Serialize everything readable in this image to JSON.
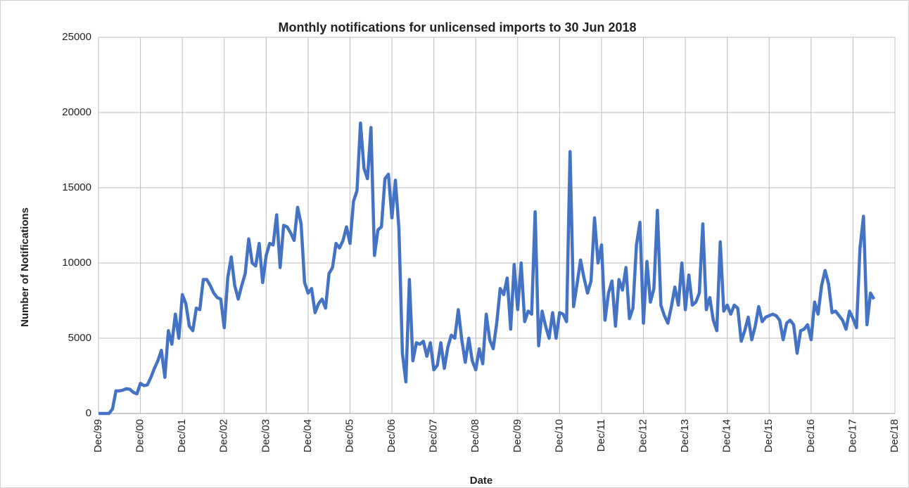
{
  "chart_data": {
    "type": "line",
    "title": "Monthly notifications for unlicensed imports to 30 Jun 2018",
    "xlabel": "Date",
    "ylabel": "Number of Notifications",
    "x": [
      "1999-12",
      "2000-01",
      "2000-02",
      "2000-03",
      "2000-04",
      "2000-05",
      "2000-06",
      "2000-07",
      "2000-08",
      "2000-09",
      "2000-10",
      "2000-11",
      "2000-12",
      "2001-01",
      "2001-02",
      "2001-03",
      "2001-04",
      "2001-05",
      "2001-06",
      "2001-07",
      "2001-08",
      "2001-09",
      "2001-10",
      "2001-11",
      "2001-12",
      "2002-01",
      "2002-02",
      "2002-03",
      "2002-04",
      "2002-05",
      "2002-06",
      "2002-07",
      "2002-08",
      "2002-09",
      "2002-10",
      "2002-11",
      "2002-12",
      "2003-01",
      "2003-02",
      "2003-03",
      "2003-04",
      "2003-05",
      "2003-06",
      "2003-07",
      "2003-08",
      "2003-09",
      "2003-10",
      "2003-11",
      "2003-12",
      "2004-01",
      "2004-02",
      "2004-03",
      "2004-04",
      "2004-05",
      "2004-06",
      "2004-07",
      "2004-08",
      "2004-09",
      "2004-10",
      "2004-11",
      "2004-12",
      "2005-01",
      "2005-02",
      "2005-03",
      "2005-04",
      "2005-05",
      "2005-06",
      "2005-07",
      "2005-08",
      "2005-09",
      "2005-10",
      "2005-11",
      "2005-12",
      "2006-01",
      "2006-02",
      "2006-03",
      "2006-04",
      "2006-05",
      "2006-06",
      "2006-07",
      "2006-08",
      "2006-09",
      "2006-10",
      "2006-11",
      "2006-12",
      "2007-01",
      "2007-02",
      "2007-03",
      "2007-04",
      "2007-05",
      "2007-06",
      "2007-07",
      "2007-08",
      "2007-09",
      "2007-10",
      "2007-11",
      "2007-12",
      "2008-01",
      "2008-02",
      "2008-03",
      "2008-04",
      "2008-05",
      "2008-06",
      "2008-07",
      "2008-08",
      "2008-09",
      "2008-10",
      "2008-11",
      "2008-12",
      "2009-01",
      "2009-02",
      "2009-03",
      "2009-04",
      "2009-05",
      "2009-06",
      "2009-07",
      "2009-08",
      "2009-09",
      "2009-10",
      "2009-11",
      "2009-12",
      "2010-01",
      "2010-02",
      "2010-03",
      "2010-04",
      "2010-05",
      "2010-06",
      "2010-07",
      "2010-08",
      "2010-09",
      "2010-10",
      "2010-11",
      "2010-12",
      "2011-01",
      "2011-02",
      "2011-03",
      "2011-04",
      "2011-05",
      "2011-06",
      "2011-07",
      "2011-08",
      "2011-09",
      "2011-10",
      "2011-11",
      "2011-12",
      "2012-01",
      "2012-02",
      "2012-03",
      "2012-04",
      "2012-05",
      "2012-06",
      "2012-07",
      "2012-08",
      "2012-09",
      "2012-10",
      "2012-11",
      "2012-12",
      "2013-01",
      "2013-02",
      "2013-03",
      "2013-04",
      "2013-05",
      "2013-06",
      "2013-07",
      "2013-08",
      "2013-09",
      "2013-10",
      "2013-11",
      "2013-12",
      "2014-01",
      "2014-02",
      "2014-03",
      "2014-04",
      "2014-05",
      "2014-06",
      "2014-07",
      "2014-08",
      "2014-09",
      "2014-10",
      "2014-11",
      "2014-12",
      "2015-01",
      "2015-02",
      "2015-03",
      "2015-04",
      "2015-05",
      "2015-06",
      "2015-07",
      "2015-08",
      "2015-09",
      "2015-10",
      "2015-11",
      "2015-12",
      "2016-01",
      "2016-02",
      "2016-03",
      "2016-04",
      "2016-05",
      "2016-06",
      "2016-07",
      "2016-08",
      "2016-09",
      "2016-10",
      "2016-11",
      "2016-12",
      "2017-01",
      "2017-02",
      "2017-03",
      "2017-04",
      "2017-05",
      "2017-06",
      "2017-07",
      "2017-08",
      "2017-09",
      "2017-10",
      "2017-11",
      "2017-12",
      "2018-01",
      "2018-02",
      "2018-03",
      "2018-04",
      "2018-05",
      "2018-06"
    ],
    "series": [
      {
        "name": "Notifications",
        "color": "#4472c4",
        "values": [
          0,
          0,
          0,
          0,
          300,
          1500,
          1500,
          1550,
          1650,
          1600,
          1400,
          1300,
          2000,
          1850,
          1900,
          2400,
          3000,
          3500,
          4200,
          2400,
          5500,
          4600,
          6600,
          5000,
          7900,
          7300,
          5800,
          5500,
          7000,
          6900,
          8900,
          8900,
          8500,
          8000,
          7700,
          7600,
          5700,
          9000,
          10400,
          8500,
          7600,
          8500,
          9300,
          11600,
          10000,
          9800,
          11300,
          8700,
          10500,
          11300,
          11200,
          13200,
          9700,
          12500,
          12400,
          12000,
          11500,
          13700,
          12600,
          8700,
          8000,
          8300,
          6700,
          7300,
          7600,
          7000,
          9300,
          9700,
          11300,
          11000,
          11500,
          12400,
          11300,
          14100,
          14800,
          19300,
          16300,
          15600,
          19000,
          10500,
          12200,
          12400,
          15600,
          15900,
          13000,
          15500,
          12300,
          4000,
          2100,
          8900,
          3500,
          4700,
          4600,
          4800,
          3800,
          4700,
          2900,
          3200,
          4700,
          3000,
          4400,
          5200,
          5000,
          6900,
          4900,
          3400,
          5000,
          3500,
          2900,
          4300,
          3300,
          6600,
          4900,
          4300,
          6000,
          8300,
          7900,
          9000,
          5600,
          9900,
          6900,
          10000,
          6100,
          6800,
          6600,
          13400,
          4500,
          6800,
          5800,
          5000,
          6700,
          5000,
          6700,
          6600,
          6100,
          17400,
          7100,
          8600,
          10200,
          9000,
          8000,
          8800,
          13000,
          10000,
          11200,
          6200,
          8000,
          8800,
          5800,
          8900,
          8200,
          9700,
          6300,
          7000,
          11200,
          12700,
          6000,
          10100,
          7400,
          8300,
          13500,
          7200,
          6500,
          6000,
          7100,
          8400,
          7200,
          10000,
          6900,
          9200,
          7200,
          7400,
          8000,
          12600,
          6900,
          7700,
          6200,
          5500,
          11400,
          6800,
          7200,
          6600,
          7200,
          7000,
          4800,
          5500,
          6400,
          4900,
          5800,
          7100,
          6100,
          6400,
          6500,
          6600,
          6500,
          6200,
          4900,
          6000,
          6200,
          5900,
          4000,
          5500,
          5600,
          5900,
          4900,
          7400,
          6600,
          8500,
          9500,
          8600,
          6700,
          6800,
          6500,
          6200,
          5600,
          6800,
          6300,
          5700,
          11000,
          13100,
          5900,
          8000,
          7600
        ]
      }
    ],
    "xlim": [
      "1999-12",
      "2018-12"
    ],
    "xticks": [
      {
        "value": "1999-12",
        "label": "Dec/99"
      },
      {
        "value": "2000-12",
        "label": "Dec/00"
      },
      {
        "value": "2001-12",
        "label": "Dec/01"
      },
      {
        "value": "2002-12",
        "label": "Dec/02"
      },
      {
        "value": "2003-12",
        "label": "Dec/03"
      },
      {
        "value": "2004-12",
        "label": "Dec/04"
      },
      {
        "value": "2005-12",
        "label": "Dec/05"
      },
      {
        "value": "2006-12",
        "label": "Dec/06"
      },
      {
        "value": "2007-12",
        "label": "Dec/07"
      },
      {
        "value": "2008-12",
        "label": "Dec/08"
      },
      {
        "value": "2009-12",
        "label": "Dec/09"
      },
      {
        "value": "2010-12",
        "label": "Dec/10"
      },
      {
        "value": "2011-12",
        "label": "Dec/11"
      },
      {
        "value": "2012-12",
        "label": "Dec/12"
      },
      {
        "value": "2013-12",
        "label": "Dec/13"
      },
      {
        "value": "2014-12",
        "label": "Dec/14"
      },
      {
        "value": "2015-12",
        "label": "Dec/15"
      },
      {
        "value": "2016-12",
        "label": "Dec/16"
      },
      {
        "value": "2017-12",
        "label": "Dec/17"
      },
      {
        "value": "2018-12",
        "label": "Dec/18"
      }
    ],
    "ylim": [
      0,
      25000
    ],
    "yticks": [
      0,
      5000,
      10000,
      15000,
      20000,
      25000
    ],
    "grid": true
  }
}
